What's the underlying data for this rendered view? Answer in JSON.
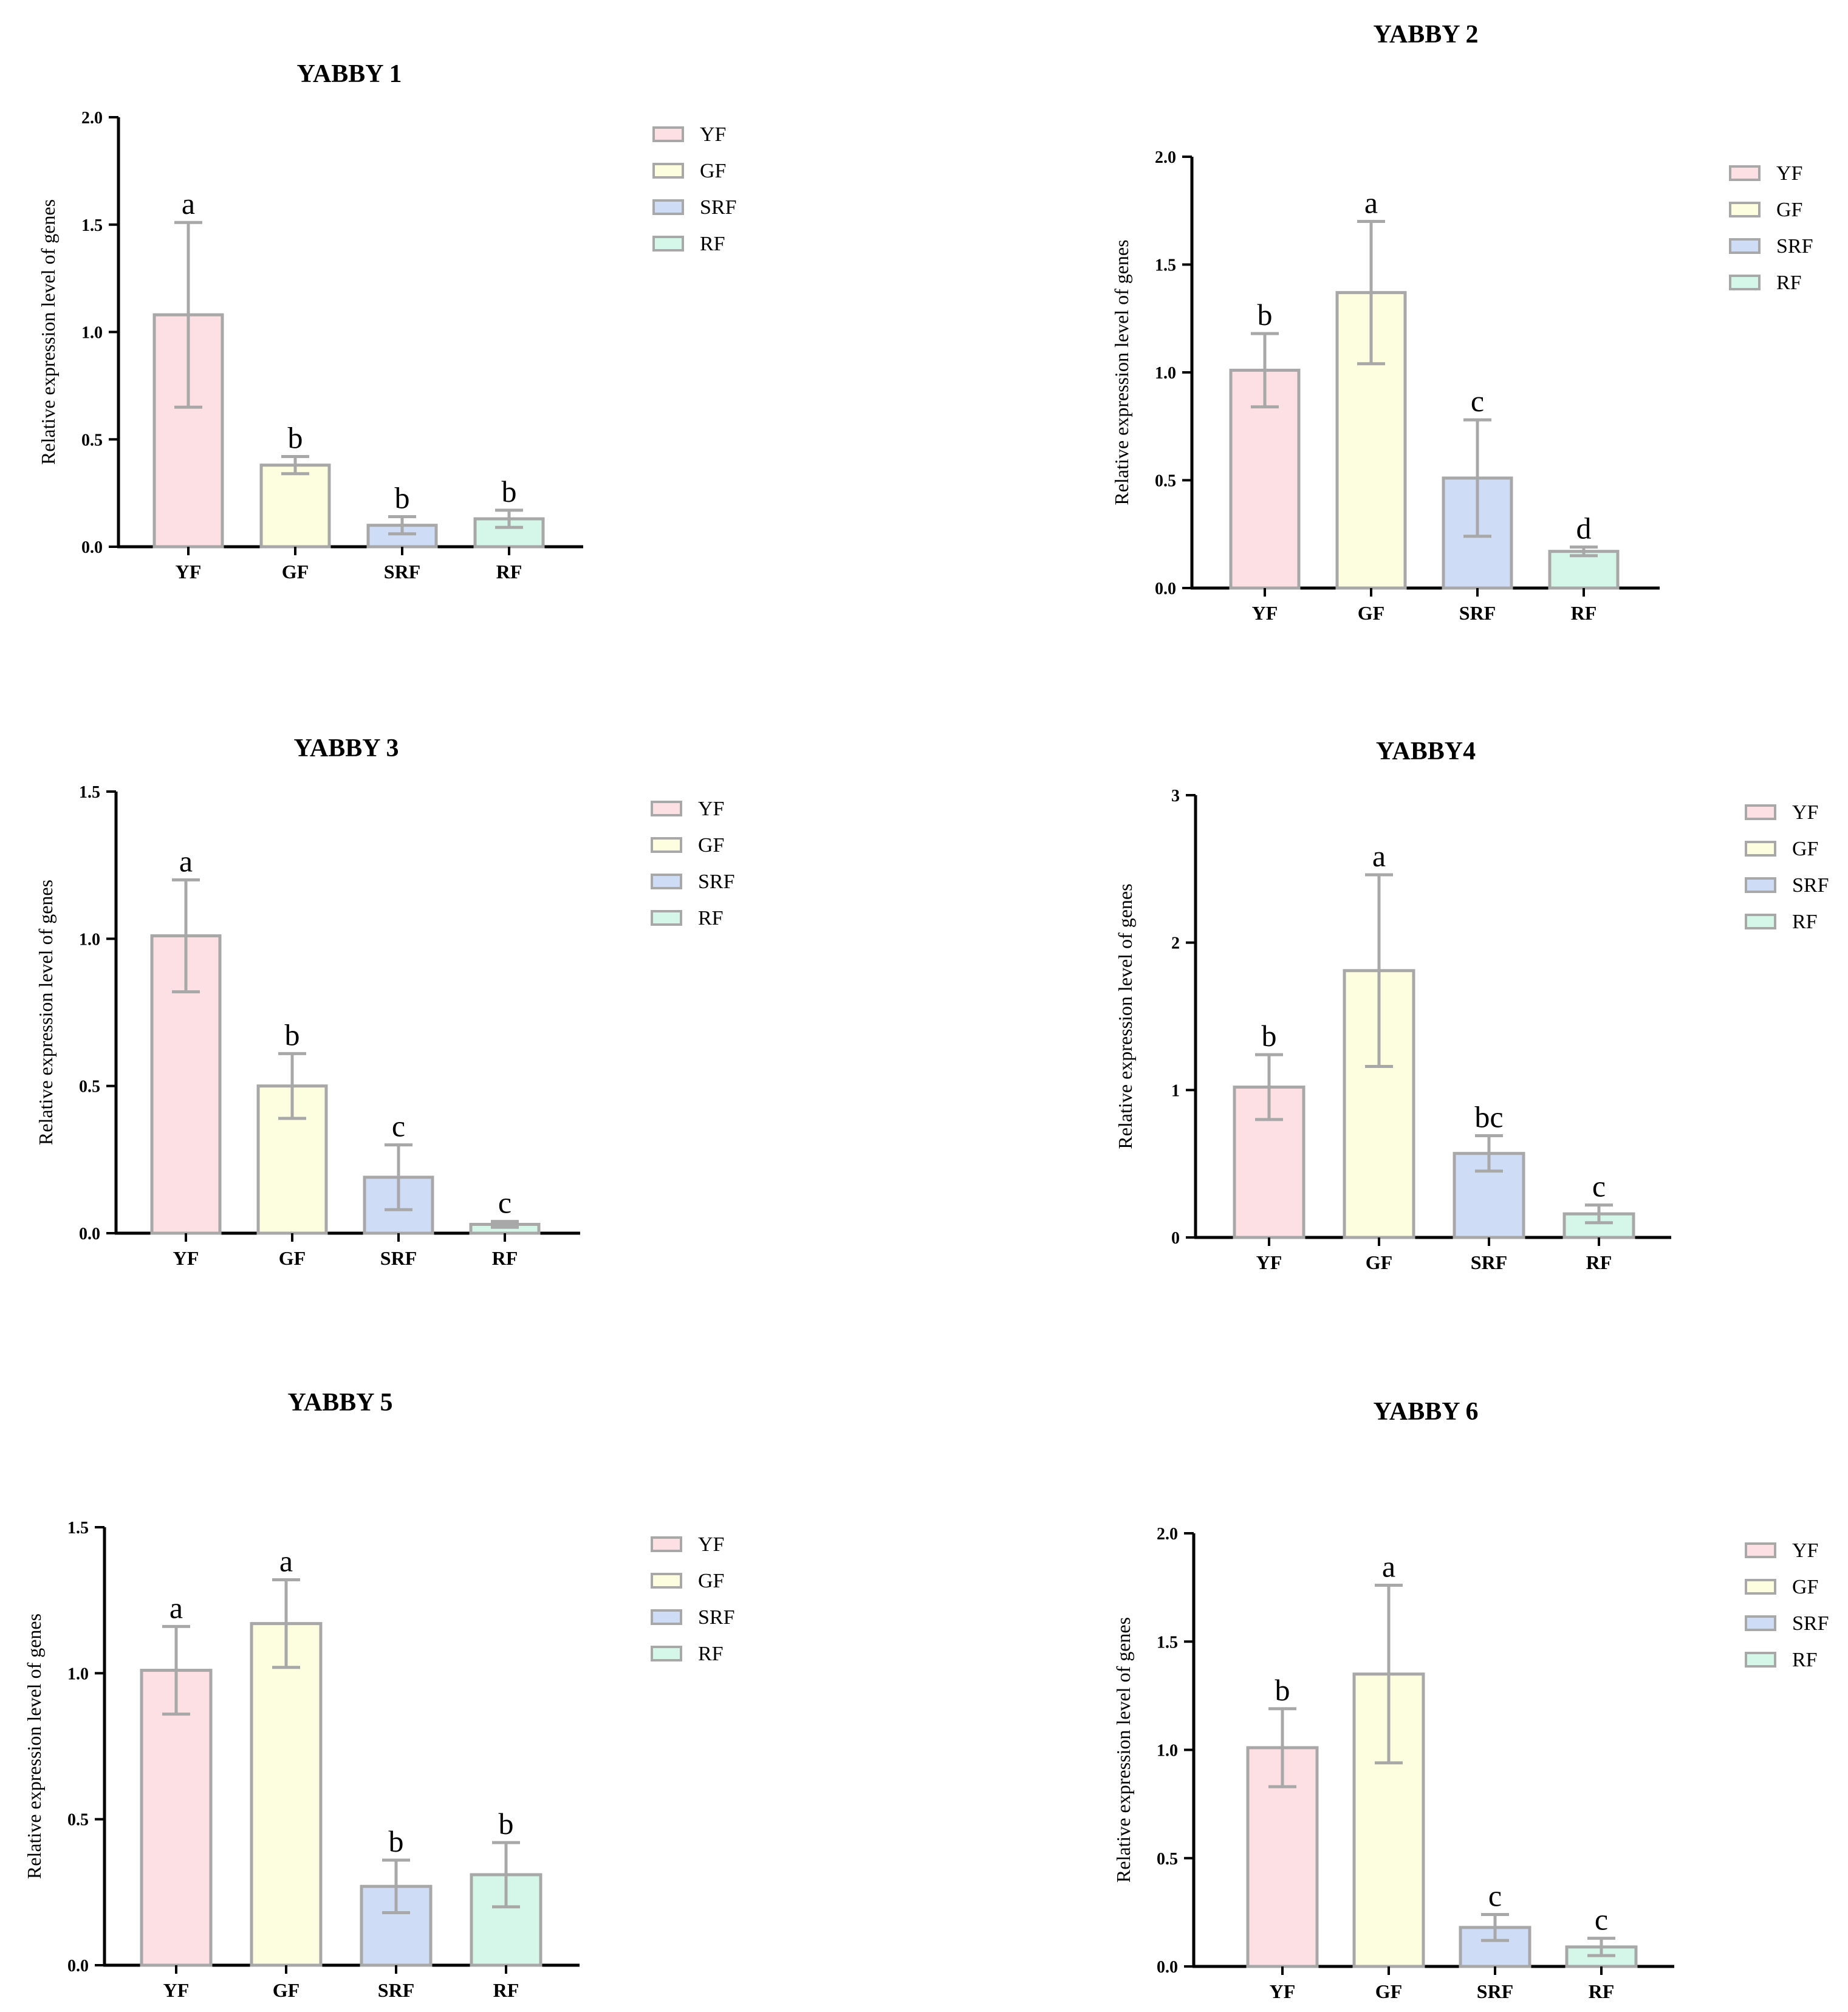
{
  "colors": {
    "YF": "#fde0e3",
    "GF": "#fdfde0",
    "SRF": "#cfdcf6",
    "RF": "#d5f7ea",
    "bar_stroke": "#a8a8a8",
    "error_bar": "#a8a8a8",
    "axis": "#000000"
  },
  "legend_labels": [
    "YF",
    "GF",
    "SRF",
    "RF"
  ],
  "chart_data": [
    {
      "type": "bar",
      "title": "YABBY 1",
      "ylabel": "Relative expression level of genes",
      "xlabel": "",
      "categories": [
        "YF",
        "GF",
        "SRF",
        "RF"
      ],
      "values": [
        1.08,
        0.38,
        0.1,
        0.13
      ],
      "errors": [
        0.43,
        0.04,
        0.04,
        0.04
      ],
      "letters": [
        "a",
        "b",
        "b",
        "b"
      ],
      "ylim": [
        0,
        2.0
      ],
      "yticks": [
        "0.0",
        "0.5",
        "1.0",
        "1.5",
        "2.0"
      ],
      "legend": [
        "YF",
        "GF",
        "SRF",
        "RF"
      ],
      "legend_position": "right"
    },
    {
      "type": "bar",
      "title": "YABBY 2",
      "ylabel": "Relative expression level of genes",
      "xlabel": "",
      "categories": [
        "YF",
        "GF",
        "SRF",
        "RF"
      ],
      "values": [
        1.01,
        1.37,
        0.51,
        0.17
      ],
      "errors": [
        0.17,
        0.33,
        0.27,
        0.02
      ],
      "letters": [
        "b",
        "a",
        "c",
        "d"
      ],
      "ylim": [
        0,
        2.0
      ],
      "yticks": [
        "0.0",
        "0.5",
        "1.0",
        "1.5",
        "2.0"
      ],
      "legend": [
        "YF",
        "GF",
        "SRF",
        "RF"
      ],
      "legend_position": "right"
    },
    {
      "type": "bar",
      "title": "YABBY 3",
      "ylabel": "Relative expression level of genes",
      "xlabel": "",
      "categories": [
        "YF",
        "GF",
        "SRF",
        "RF"
      ],
      "values": [
        1.01,
        0.5,
        0.19,
        0.03
      ],
      "errors": [
        0.19,
        0.11,
        0.11,
        0.01
      ],
      "letters": [
        "a",
        "b",
        "c",
        "c"
      ],
      "ylim": [
        0,
        1.5
      ],
      "yticks": [
        "0.0",
        "0.5",
        "1.0",
        "1.5"
      ],
      "legend": [
        "YF",
        "GF",
        "SRF",
        "RF"
      ],
      "legend_position": "right"
    },
    {
      "type": "bar",
      "title": "YABBY4",
      "ylabel": "Relative expression level of genes",
      "xlabel": "",
      "categories": [
        "YF",
        "GF",
        "SRF",
        "RF"
      ],
      "values": [
        1.02,
        1.81,
        0.57,
        0.16
      ],
      "errors": [
        0.22,
        0.65,
        0.12,
        0.06
      ],
      "letters": [
        "b",
        "a",
        "bc",
        "c"
      ],
      "ylim": [
        0,
        3
      ],
      "yticks": [
        "0",
        "1",
        "2",
        "3"
      ],
      "legend": [
        "YF",
        "GF",
        "SRF",
        "RF"
      ],
      "legend_position": "right"
    },
    {
      "type": "bar",
      "title": "YABBY 5",
      "ylabel": "Relative expression level of genes",
      "xlabel": "",
      "categories": [
        "YF",
        "GF",
        "SRF",
        "RF"
      ],
      "values": [
        1.01,
        1.17,
        0.27,
        0.31
      ],
      "errors": [
        0.15,
        0.15,
        0.09,
        0.11
      ],
      "letters": [
        "a",
        "a",
        "b",
        "b"
      ],
      "ylim": [
        0,
        1.5
      ],
      "yticks": [
        "0.0",
        "0.5",
        "1.0",
        "1.5"
      ],
      "legend": [
        "YF",
        "GF",
        "SRF",
        "RF"
      ],
      "legend_position": "right"
    },
    {
      "type": "bar",
      "title": "YABBY 6",
      "ylabel": "Relative expression level of genes",
      "xlabel": "",
      "categories": [
        "YF",
        "GF",
        "SRF",
        "RF"
      ],
      "values": [
        1.01,
        1.35,
        0.18,
        0.09
      ],
      "errors": [
        0.18,
        0.41,
        0.06,
        0.04
      ],
      "letters": [
        "b",
        "a",
        "c",
        "c"
      ],
      "ylim": [
        0,
        2.0
      ],
      "yticks": [
        "0.0",
        "0.5",
        "1.0",
        "1.5",
        "2.0"
      ],
      "legend": [
        "YF",
        "GF",
        "SRF",
        "RF"
      ],
      "legend_position": "right"
    }
  ]
}
